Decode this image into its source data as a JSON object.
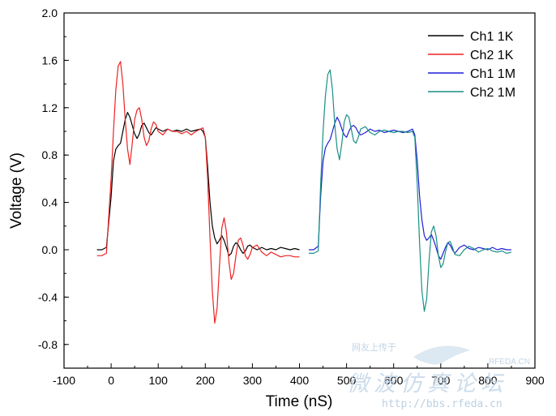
{
  "chart_data": {
    "type": "line",
    "xlabel": "Time (nS)",
    "ylabel": "Voltage (V)",
    "xlim": [
      -100,
      900
    ],
    "ylim": [
      -1.0,
      2.0
    ],
    "x_ticks": [
      -100,
      0,
      100,
      200,
      300,
      400,
      500,
      600,
      700,
      800,
      900
    ],
    "y_ticks": [
      -0.8,
      -0.4,
      0.0,
      0.4,
      0.8,
      1.2,
      1.6,
      2.0
    ],
    "x_tick_labels": [
      "-100",
      "0",
      "100",
      "200",
      "300",
      "400",
      "500",
      "600",
      "700",
      "800",
      "900"
    ],
    "y_tick_labels": [
      "-0.8",
      "-0.4",
      "0.0",
      "0.4",
      "0.8",
      "1.2",
      "1.6",
      "2.0"
    ],
    "grid": false,
    "legend_position": "top-right",
    "series": [
      {
        "name": "Ch1 1K",
        "color": "#000000",
        "x": [
          -30,
          -20,
          -10,
          0,
          5,
          10,
          15,
          20,
          25,
          30,
          35,
          40,
          45,
          50,
          55,
          60,
          65,
          70,
          75,
          80,
          85,
          90,
          95,
          100,
          110,
          120,
          130,
          140,
          150,
          160,
          170,
          180,
          190,
          195,
          200,
          205,
          210,
          215,
          220,
          225,
          230,
          235,
          240,
          245,
          250,
          255,
          260,
          265,
          270,
          275,
          280,
          285,
          290,
          295,
          300,
          310,
          320,
          330,
          340,
          350,
          360,
          370,
          380,
          390,
          400
        ],
        "y": [
          0.0,
          0.0,
          0.02,
          0.45,
          0.75,
          0.85,
          0.88,
          0.9,
          1.0,
          1.1,
          1.16,
          1.12,
          1.05,
          0.98,
          0.94,
          0.98,
          1.05,
          1.07,
          1.03,
          0.99,
          0.97,
          1.0,
          1.03,
          1.02,
          1.0,
          1.02,
          1.0,
          1.01,
          1.0,
          1.02,
          1.0,
          1.01,
          1.02,
          1.0,
          0.95,
          0.7,
          0.4,
          0.2,
          0.1,
          0.05,
          0.08,
          0.12,
          0.08,
          0.02,
          -0.05,
          -0.03,
          0.03,
          0.06,
          0.04,
          0.0,
          -0.03,
          -0.01,
          0.03,
          0.04,
          0.02,
          0.0,
          0.02,
          0.0,
          0.01,
          0.0,
          0.02,
          0.01,
          0.0,
          0.01,
          0.0
        ]
      },
      {
        "name": "Ch2 1K",
        "color": "#ee2222",
        "x": [
          -30,
          -20,
          -10,
          0,
          5,
          10,
          15,
          20,
          25,
          30,
          35,
          40,
          45,
          50,
          55,
          60,
          65,
          70,
          75,
          80,
          85,
          90,
          95,
          100,
          110,
          120,
          130,
          140,
          150,
          160,
          170,
          180,
          190,
          195,
          200,
          205,
          210,
          215,
          220,
          225,
          230,
          235,
          240,
          245,
          250,
          255,
          260,
          265,
          270,
          275,
          280,
          285,
          290,
          295,
          300,
          310,
          320,
          330,
          340,
          350,
          360,
          370,
          380,
          390,
          400
        ],
        "y": [
          -0.05,
          -0.05,
          -0.03,
          0.6,
          1.0,
          1.35,
          1.55,
          1.59,
          1.4,
          1.1,
          0.85,
          0.72,
          0.9,
          1.1,
          1.18,
          1.2,
          1.1,
          0.95,
          0.88,
          0.92,
          1.02,
          1.08,
          1.06,
          1.0,
          0.97,
          1.02,
          1.0,
          1.0,
          0.98,
          1.0,
          0.97,
          1.0,
          1.02,
          1.03,
          0.95,
          0.6,
          0.1,
          -0.35,
          -0.62,
          -0.5,
          -0.15,
          0.18,
          0.27,
          0.15,
          -0.1,
          -0.25,
          -0.2,
          -0.05,
          0.08,
          0.1,
          0.04,
          -0.05,
          -0.08,
          -0.04,
          0.02,
          0.04,
          -0.02,
          -0.05,
          -0.02,
          -0.04,
          -0.06,
          -0.05,
          -0.05,
          -0.06,
          -0.06
        ]
      },
      {
        "name": "Ch1 1M",
        "color": "#1f1fd6",
        "x": [
          420,
          430,
          440,
          445,
          450,
          455,
          460,
          465,
          470,
          475,
          480,
          485,
          490,
          495,
          500,
          505,
          510,
          515,
          520,
          525,
          530,
          540,
          550,
          560,
          570,
          580,
          590,
          600,
          610,
          620,
          630,
          640,
          645,
          650,
          655,
          660,
          665,
          670,
          675,
          680,
          685,
          690,
          695,
          700,
          705,
          710,
          715,
          720,
          725,
          730,
          740,
          750,
          760,
          770,
          780,
          790,
          800,
          810,
          820,
          830,
          840,
          850
        ],
        "y": [
          0.0,
          0.0,
          0.03,
          0.45,
          0.75,
          0.86,
          0.9,
          0.93,
          1.0,
          1.07,
          1.12,
          1.08,
          1.02,
          0.97,
          0.95,
          1.0,
          1.04,
          1.05,
          1.03,
          0.99,
          0.97,
          0.99,
          1.02,
          1.0,
          1.01,
          0.99,
          1.0,
          1.01,
          1.0,
          0.99,
          1.0,
          1.02,
          0.97,
          0.75,
          0.45,
          0.25,
          0.12,
          0.08,
          0.1,
          0.13,
          0.08,
          0.02,
          -0.05,
          -0.08,
          -0.03,
          0.02,
          0.06,
          0.04,
          0.0,
          -0.03,
          0.02,
          0.04,
          0.01,
          0.0,
          0.02,
          0.01,
          0.0,
          0.02,
          0.0,
          0.01,
          0.0,
          0.0
        ]
      },
      {
        "name": "Ch2 1M",
        "color": "#1a8f86",
        "x": [
          420,
          430,
          440,
          445,
          450,
          455,
          460,
          465,
          470,
          475,
          480,
          485,
          490,
          495,
          500,
          505,
          510,
          515,
          520,
          525,
          530,
          540,
          550,
          560,
          570,
          580,
          590,
          600,
          610,
          620,
          630,
          640,
          645,
          650,
          655,
          660,
          665,
          670,
          675,
          680,
          685,
          690,
          695,
          700,
          705,
          710,
          715,
          720,
          725,
          730,
          740,
          750,
          760,
          770,
          780,
          790,
          800,
          810,
          820,
          830,
          840,
          850
        ],
        "y": [
          -0.03,
          -0.03,
          -0.01,
          0.55,
          1.0,
          1.3,
          1.48,
          1.52,
          1.35,
          1.05,
          0.85,
          0.76,
          0.9,
          1.08,
          1.14,
          1.12,
          1.02,
          0.92,
          0.9,
          0.95,
          1.02,
          1.04,
          0.99,
          0.97,
          1.0,
          1.01,
          1.0,
          0.99,
          1.0,
          1.0,
          0.99,
          1.0,
          0.95,
          0.55,
          0.05,
          -0.35,
          -0.52,
          -0.42,
          -0.1,
          0.15,
          0.2,
          0.12,
          -0.05,
          -0.15,
          -0.12,
          -0.02,
          0.06,
          0.07,
          0.02,
          -0.04,
          -0.05,
          0.0,
          0.03,
          0.01,
          -0.02,
          0.0,
          0.01,
          -0.01,
          -0.02,
          -0.01,
          -0.03,
          -0.02
        ]
      }
    ]
  },
  "watermark": {
    "top_small_text": "网友上传于",
    "site_label": "RFEDA.CN",
    "chinese_text": "微波仿真论坛",
    "url": "http://bbs.rfeda.cn",
    "accent_color": "#bcd4e8"
  }
}
